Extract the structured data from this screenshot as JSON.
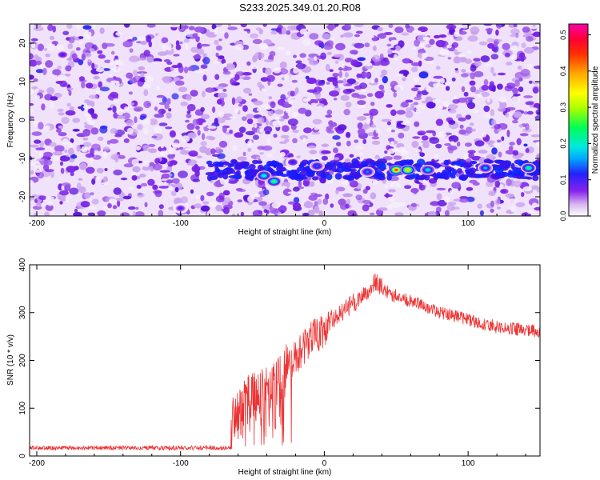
{
  "title": "S233.2025.349.01.20.R08",
  "chart_data": [
    {
      "type": "heatmap",
      "xlabel": "Height of straight line (km)",
      "ylabel": "Frequency (Hz)",
      "xlim": [
        -205,
        150
      ],
      "ylim": [
        -25,
        25
      ],
      "xticks": [
        -200,
        -100,
        0,
        100
      ],
      "yticks": [
        20,
        10,
        0,
        -10,
        -20
      ],
      "colorbar": {
        "label": "Normalized spectral amplitude",
        "range": [
          0,
          0.53
        ],
        "ticks": [
          0.5,
          0.4,
          0.3,
          0.2,
          0.1,
          0.0
        ],
        "tick_labels": [
          "0.5",
          "0.4",
          "0.3",
          "0.2",
          "0.1",
          "0.0"
        ]
      },
      "signal_band": {
        "frequency_hz": -13,
        "x_start_km": -80,
        "x_end_km": 150
      },
      "hot_spots": [
        {
          "x": -42,
          "y": -14.5,
          "value": 0.22
        },
        {
          "x": -35,
          "y": -16,
          "value": 0.26
        },
        {
          "x": -22,
          "y": -11,
          "value": 0.12
        },
        {
          "x": -5,
          "y": -12,
          "value": 0.14
        },
        {
          "x": 30,
          "y": -13.5,
          "value": 0.15
        },
        {
          "x": 50,
          "y": -13,
          "value": 0.45
        },
        {
          "x": 58,
          "y": -13,
          "value": 0.38
        },
        {
          "x": 72,
          "y": -13,
          "value": 0.2
        },
        {
          "x": 112,
          "y": -12.5,
          "value": 0.17
        },
        {
          "x": 142,
          "y": -12.5,
          "value": 0.24
        },
        {
          "x": -182,
          "y": 17,
          "value": 0.1
        },
        {
          "x": -100,
          "y": -23,
          "value": 0.09
        }
      ]
    },
    {
      "type": "line",
      "xlabel": "Height of straight line (km)",
      "ylabel": "SNR (10 * v/v)",
      "xlim": [
        -205,
        150
      ],
      "ylim": [
        0,
        400
      ],
      "xticks": [
        -200,
        -100,
        0,
        100
      ],
      "yticks": [
        0,
        100,
        200,
        300,
        400
      ],
      "color": "#ee3333",
      "series": [
        {
          "name": "SNR",
          "x": [
            -205,
            -65,
            -64,
            -55,
            -45,
            -35,
            -28,
            -20,
            -10,
            0,
            10,
            20,
            30,
            35,
            45,
            60,
            80,
            100,
            120,
            150
          ],
          "values": [
            17,
            17,
            70,
            110,
            130,
            155,
            175,
            205,
            245,
            260,
            295,
            320,
            345,
            365,
            340,
            325,
            300,
            285,
            270,
            260
          ]
        }
      ]
    }
  ]
}
